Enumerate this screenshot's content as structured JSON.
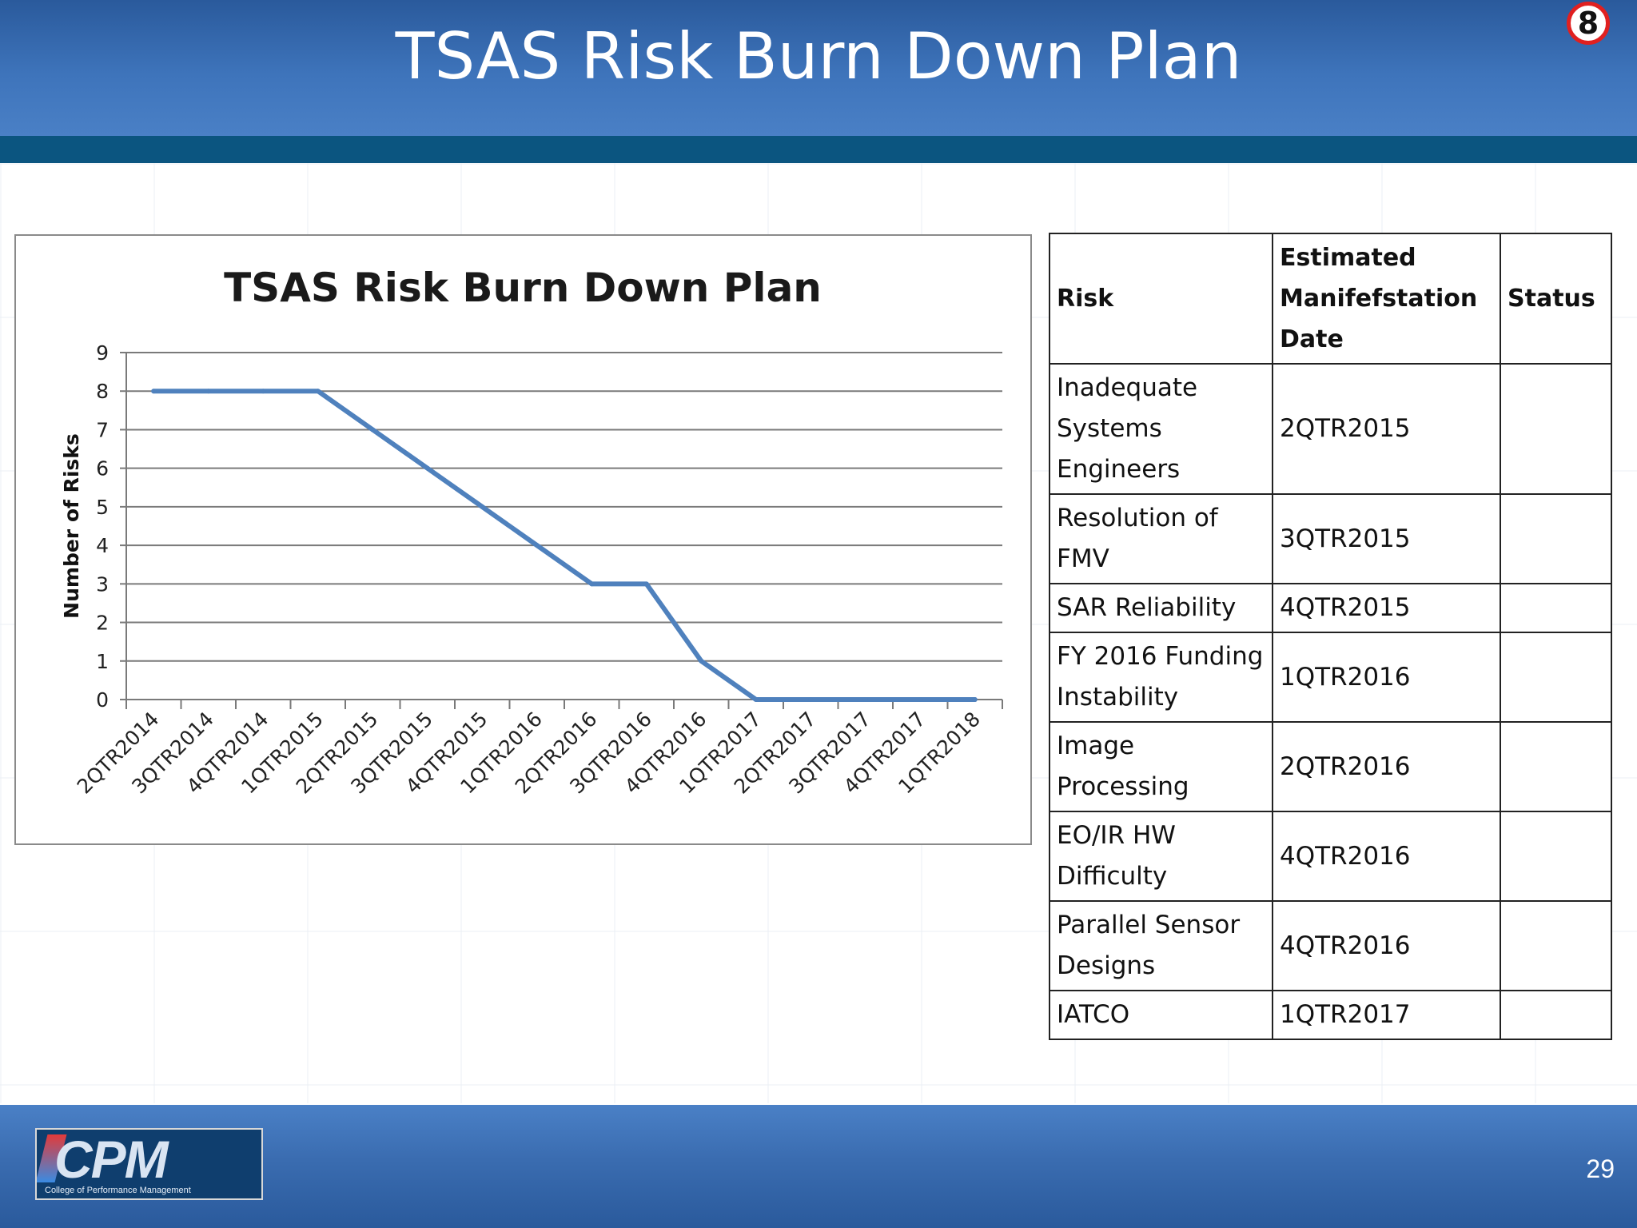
{
  "slide": {
    "title": "TSAS Risk Burn Down Plan",
    "badge": "8",
    "page_number": "29",
    "logo": {
      "text": "CPM",
      "subtitle": "College of Performance Management"
    }
  },
  "colors": {
    "header_blue": "#3e74bb",
    "stripe": "#0b5580",
    "line": "#4f81bd",
    "badge_ring": "#e02020"
  },
  "chart_data": {
    "type": "line",
    "title": "TSAS Risk Burn Down Plan",
    "xlabel": "",
    "ylabel": "Number of Risks",
    "categories": [
      "2QTR2014",
      "3QTR2014",
      "4QTR2014",
      "1QTR2015",
      "2QTR2015",
      "3QTR2015",
      "4QTR2015",
      "1QTR2016",
      "2QTR2016",
      "3QTR2016",
      "4QTR2016",
      "1QTR2017",
      "2QTR2017",
      "3QTR2017",
      "4QTR2017",
      "1QTR2018"
    ],
    "series": [
      {
        "values": [
          8,
          8,
          8,
          8,
          7,
          6,
          5,
          4,
          3,
          3,
          1,
          0,
          0,
          0,
          0,
          0
        ]
      }
    ],
    "ylim": [
      0,
      9
    ],
    "yticks": [
      0,
      1,
      2,
      3,
      4,
      5,
      6,
      7,
      8,
      9
    ],
    "grid": true,
    "legend": "none"
  },
  "table": {
    "headers": [
      "Risk",
      "Estimated Manifefstation Date",
      "Status"
    ],
    "rows": [
      {
        "risk": "Inadequate Systems Engineers",
        "date": "2QTR2015",
        "status": ""
      },
      {
        "risk": "Resolution of FMV",
        "date": "3QTR2015",
        "status": ""
      },
      {
        "risk": "SAR Reliability",
        "date": "4QTR2015",
        "status": ""
      },
      {
        "risk": "FY 2016 Funding Instability",
        "date": "1QTR2016",
        "status": ""
      },
      {
        "risk": "Image Processing",
        "date": "2QTR2016",
        "status": ""
      },
      {
        "risk": "EO/IR HW Difficulty",
        "date": "4QTR2016",
        "status": ""
      },
      {
        "risk": "Parallel Sensor Designs",
        "date": "4QTR2016",
        "status": ""
      },
      {
        "risk": "IATCO",
        "date": "1QTR2017",
        "status": ""
      }
    ]
  }
}
